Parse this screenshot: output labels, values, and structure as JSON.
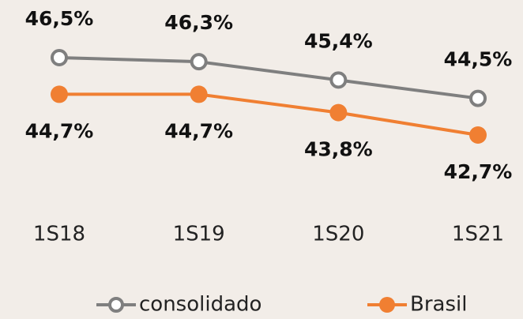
{
  "chart_data": {
    "type": "line",
    "categories": [
      "1S18",
      "1S19",
      "1S20",
      "1S21"
    ],
    "series": [
      {
        "name": "consolidado",
        "color": "#7f7f7f",
        "values": [
          46.5,
          46.3,
          45.4,
          44.5
        ],
        "value_labels": [
          "46,5%",
          "46,3%",
          "45,4%",
          "44,5%"
        ]
      },
      {
        "name": "Brasil",
        "color": "#f07f32",
        "values": [
          44.7,
          44.7,
          43.8,
          42.7
        ],
        "value_labels": [
          "44,7%",
          "44,7%",
          "43,8%",
          "42,7%"
        ]
      }
    ]
  }
}
